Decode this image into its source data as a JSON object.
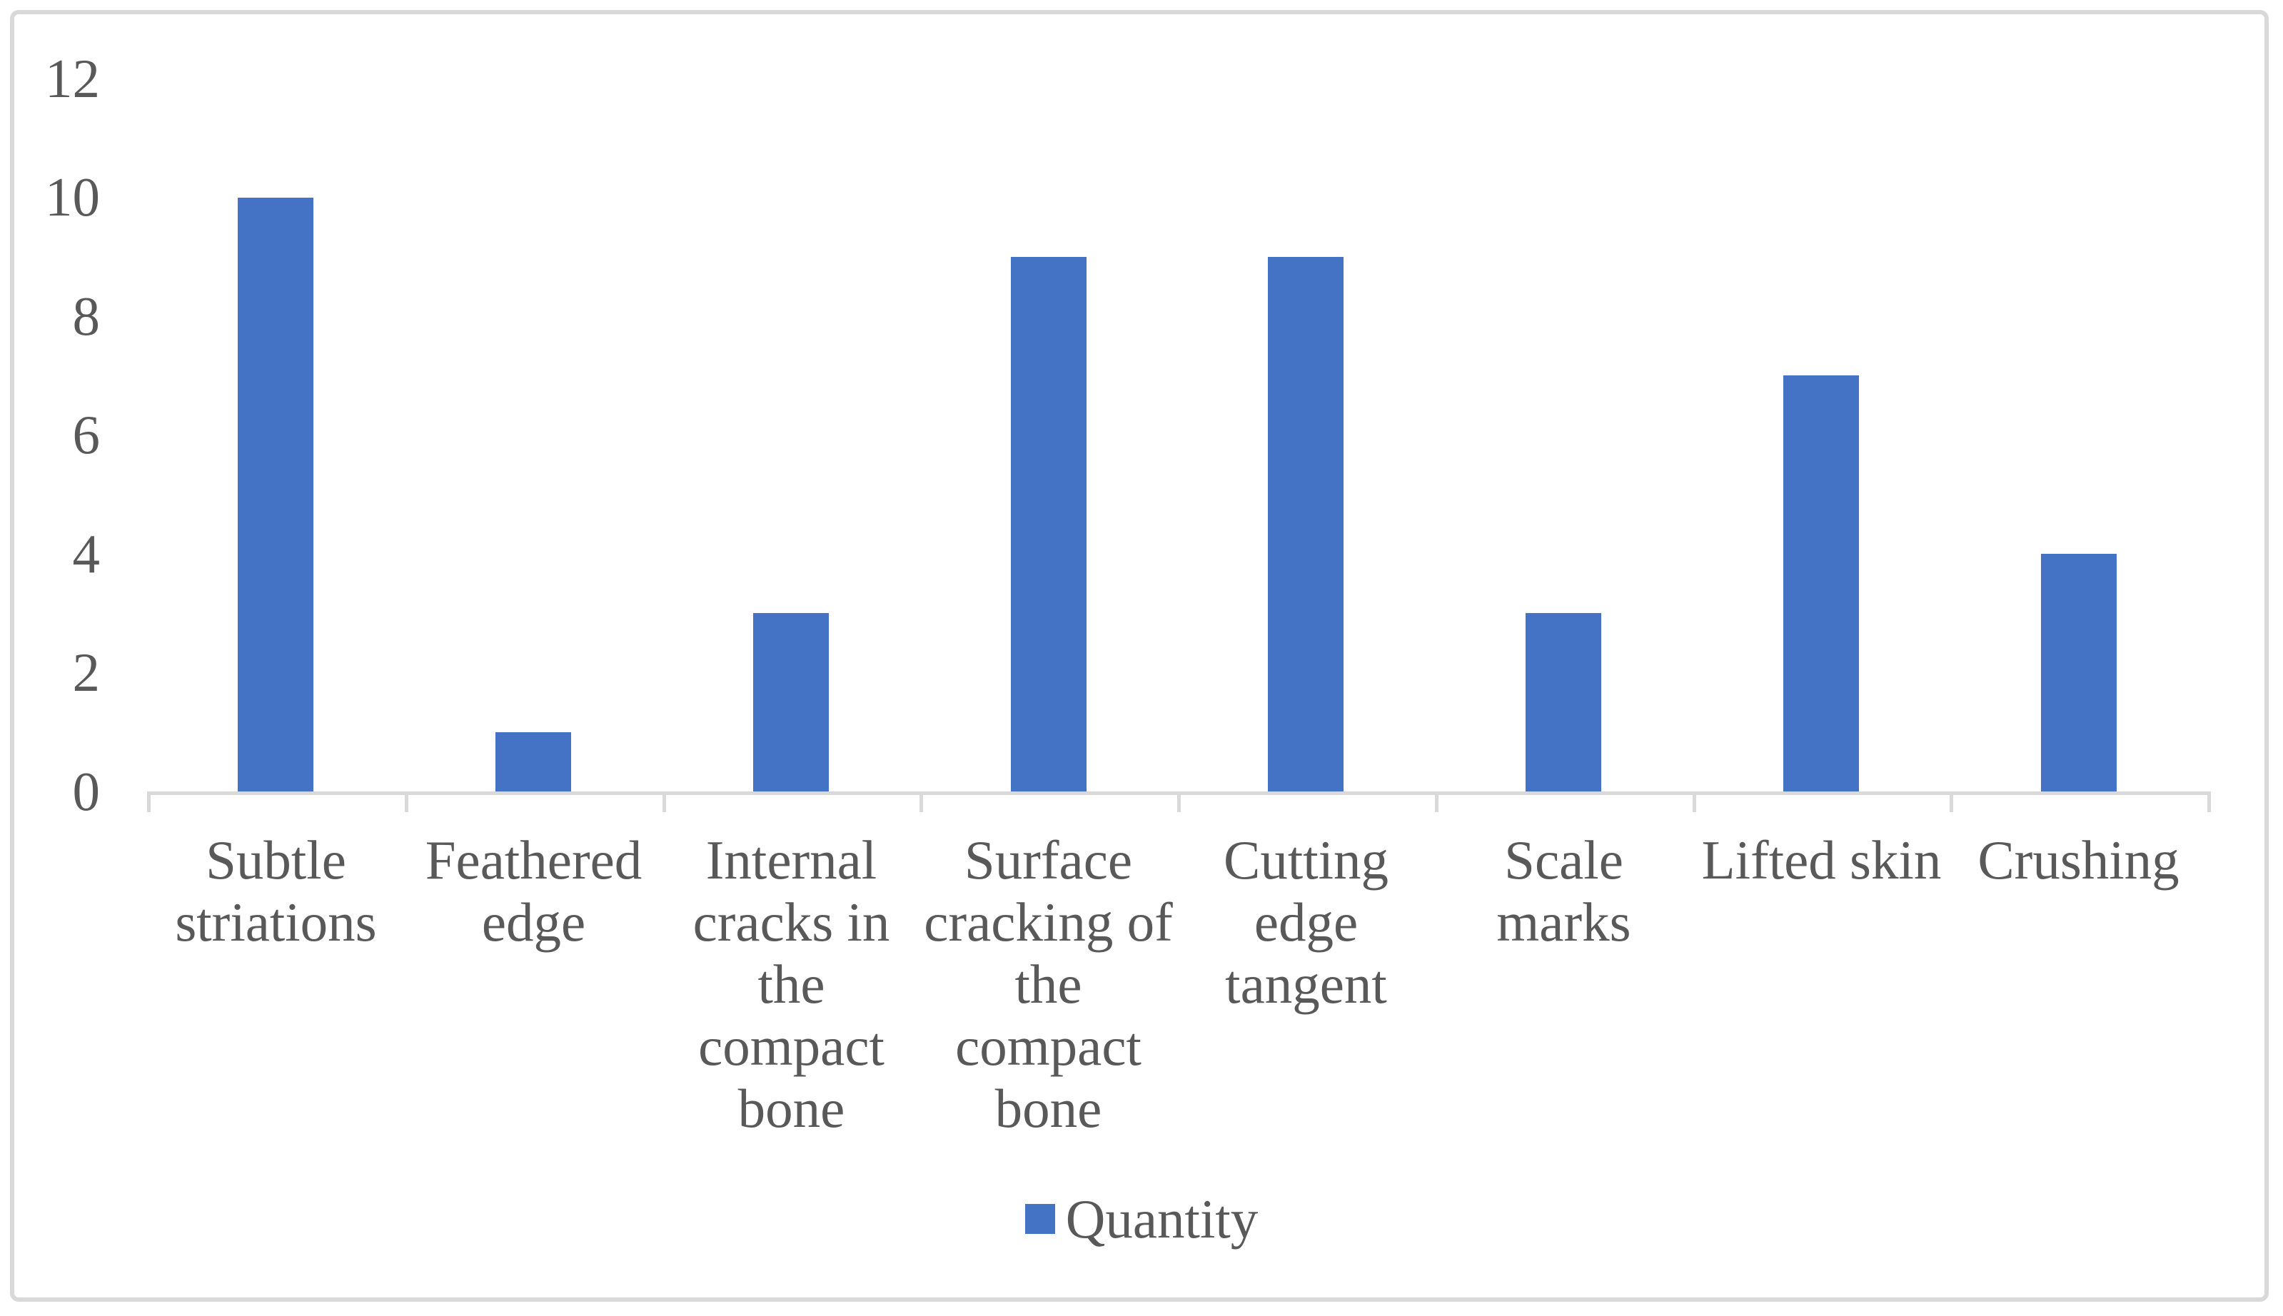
{
  "chart_data": {
    "type": "bar",
    "title": "",
    "categories": [
      "Subtle striations",
      "Feathered edge",
      "Internal cracks in the compact bone",
      "Surface cracking of the compact bone",
      "Cutting edge tangent",
      "Scale marks",
      "Lifted skin",
      "Crushing"
    ],
    "category_line_breaks": [
      [
        "Subtle",
        "striations"
      ],
      [
        "Feathered",
        "edge"
      ],
      [
        "Internal",
        "cracks in",
        "the",
        "compact",
        "bone"
      ],
      [
        "Surface",
        "cracking of",
        "the",
        "compact",
        "bone"
      ],
      [
        "Cutting",
        "edge",
        "tangent"
      ],
      [
        "Scale",
        "marks"
      ],
      [
        "Lifted skin"
      ],
      [
        "Crushing"
      ]
    ],
    "series": [
      {
        "name": "Quantity",
        "values": [
          10,
          1,
          3,
          9,
          9,
          3,
          7,
          4
        ]
      }
    ],
    "xlabel": "",
    "ylabel": "",
    "y_ticks": [
      0,
      2,
      4,
      6,
      8,
      10,
      12
    ],
    "ylim": [
      0,
      12
    ],
    "grid": false,
    "legend": {
      "label": "Quantity",
      "position": "bottom-center"
    },
    "colors": {
      "bar": "#4472C4",
      "axis": "#D9D9D9",
      "text": "#595959",
      "border": "#D9D9D9"
    }
  }
}
